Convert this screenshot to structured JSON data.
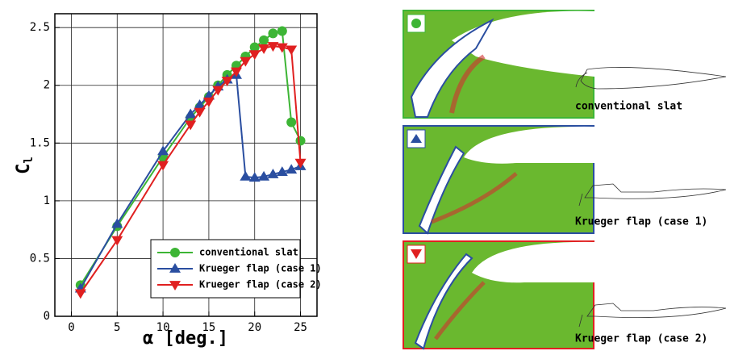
{
  "chart_data": {
    "type": "line",
    "x_label": "α [deg.]",
    "y_label": {
      "main": "C",
      "sub": "l"
    },
    "x": [
      1,
      5,
      10,
      13,
      14,
      15,
      16,
      17,
      18,
      19,
      20,
      21,
      22,
      23,
      24,
      25
    ],
    "series": [
      {
        "name": "conventional slat",
        "color": "#3db535",
        "marker": "circle",
        "values": [
          0.27,
          0.78,
          1.38,
          1.72,
          1.81,
          1.9,
          2.0,
          2.09,
          2.17,
          2.25,
          2.33,
          2.39,
          2.45,
          2.47,
          1.68,
          1.52
        ]
      },
      {
        "name": "Krueger flap (case 1)",
        "color": "#2a4ea0",
        "marker": "triangle-up",
        "values": [
          0.24,
          0.8,
          1.43,
          1.75,
          1.83,
          1.91,
          1.99,
          2.05,
          2.09,
          1.21,
          1.2,
          1.21,
          1.23,
          1.25,
          1.27,
          1.3
        ]
      },
      {
        "name": "Krueger flap (case 2)",
        "color": "#e02020",
        "marker": "triangle-down",
        "values": [
          0.2,
          0.66,
          1.31,
          1.66,
          1.77,
          1.86,
          1.96,
          2.04,
          2.12,
          2.21,
          2.27,
          2.32,
          2.34,
          2.33,
          2.31,
          1.33
        ]
      }
    ],
    "xlim": [
      -1.8,
      26.8
    ],
    "ylim": [
      0,
      2.62
    ],
    "xticks": [
      0,
      5,
      10,
      15,
      20,
      25
    ],
    "yticks": [
      0,
      0.5,
      1,
      1.5,
      2,
      2.5
    ],
    "grid": true,
    "legend": "lower right"
  }
}
